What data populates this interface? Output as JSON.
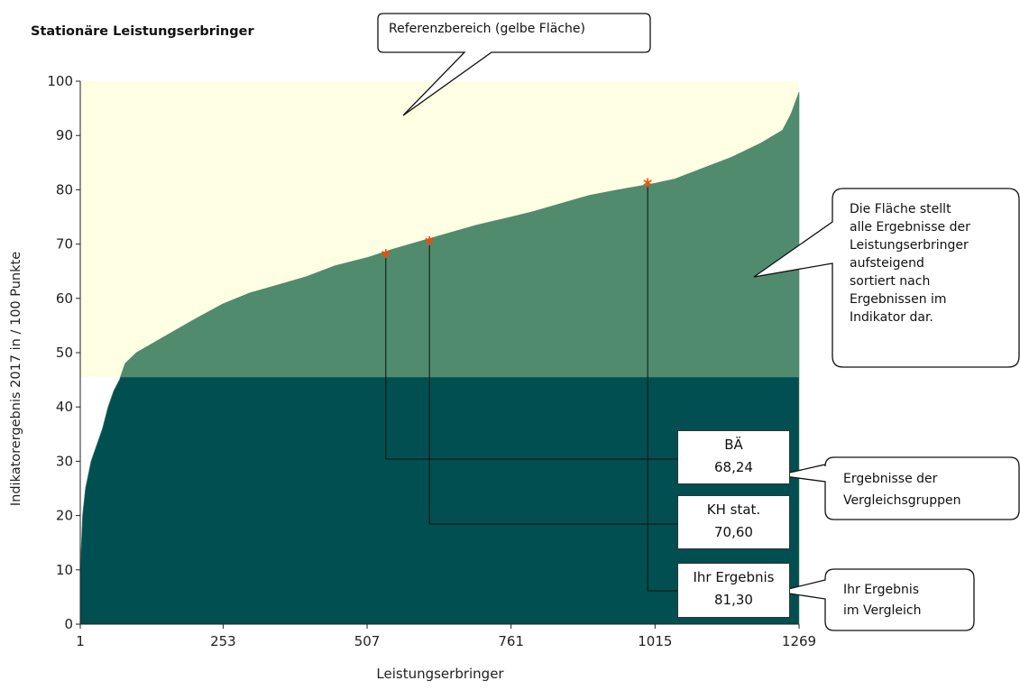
{
  "title": "Stationäre Leistungserbringer",
  "chart_data": {
    "type": "area",
    "title": "Stationäre Leistungserbringer",
    "xlabel": "Leistungserbringer",
    "ylabel": "Indikatorergebnis 2017 in / 100 Punkte",
    "xlim": [
      1,
      1269
    ],
    "ylim": [
      0,
      100
    ],
    "xticks": [
      "1",
      "253",
      "507",
      "761",
      "1015",
      "1269"
    ],
    "yticks": [
      "0",
      "10",
      "20",
      "30",
      "40",
      "50",
      "60",
      "70",
      "80",
      "90",
      "100"
    ],
    "reference_range": [
      45.5,
      100
    ],
    "x": [
      1,
      5,
      10,
      20,
      30,
      40,
      50,
      60,
      70,
      80,
      100,
      150,
      200,
      253,
      300,
      350,
      400,
      450,
      507,
      550,
      600,
      650,
      700,
      761,
      800,
      850,
      900,
      950,
      1015,
      1050,
      1100,
      1150,
      1200,
      1240,
      1255,
      1269
    ],
    "values": [
      10,
      20,
      25,
      30,
      33,
      36,
      40,
      43,
      45,
      48,
      50,
      53,
      56,
      59,
      61,
      62.5,
      64,
      66,
      67.5,
      69,
      70.5,
      72,
      73.5,
      75,
      76,
      77.5,
      79,
      80,
      81.2,
      82,
      84,
      86,
      88.5,
      91,
      94,
      98
    ],
    "markers": [
      {
        "label": "BÄ",
        "value": "68,24",
        "x": 540,
        "y": 68.24
      },
      {
        "label": "KH stat.",
        "value": "70,60",
        "x": 617,
        "y": 70.6
      },
      {
        "label": "Ihr Ergebnis",
        "value": "81,30",
        "x": 1002,
        "y": 81.3
      }
    ],
    "annotations": [
      "Referenzbereich (gelbe Fläche)",
      "Die Fläche stellt alle Ergebnisse der Leistungserbringer aufsteigend sortiert nach Ergebnissen im Indikator dar.",
      "Ergebnisse der Vergleichsgruppen",
      "Ihr Ergebnis im Vergleich"
    ],
    "colors": {
      "reference": "#ffffe3",
      "area_upper": "#4f8b6c",
      "area_lower": "#024f51",
      "marker": "#ff4500"
    },
    "grid": false
  },
  "callouts": {
    "reference": "Referenzbereich (gelbe Fläche)",
    "area_lines": [
      "Die Fläche stellt",
      "alle Ergebnisse der",
      "Leistungserbringer",
      "aufsteigend",
      "sortiert nach",
      "Ergebnissen im",
      "Indikator dar."
    ],
    "groups_lines": [
      "Ergebnisse der",
      "Vergleichsgruppen"
    ],
    "yours_lines": [
      "Ihr Ergebnis",
      "im Vergleich"
    ]
  }
}
